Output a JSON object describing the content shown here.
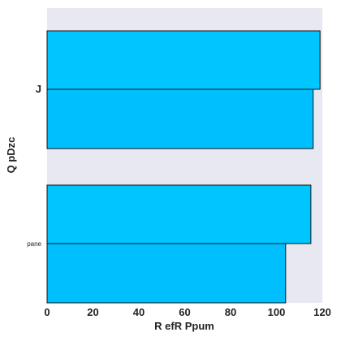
{
  "chart_data": {
    "type": "bar",
    "orientation": "horizontal",
    "title": "",
    "xlabel": "R efR Ppum",
    "ylabel": "Q  pDzc",
    "xlim": [
      0,
      120
    ],
    "xticks": [
      0,
      20,
      40,
      60,
      80,
      100,
      120
    ],
    "categories": [
      "J",
      "pane"
    ],
    "values": [
      [
        119,
        116,
        116
      ],
      [
        115,
        115,
        104
      ]
    ],
    "grid": false,
    "legend": "none",
    "colors": {
      "bar_fill": "#00bfff",
      "bar_fill_alt": "#00c6ff",
      "bar_edge": "#111111",
      "plot_background": "#e8e8f2",
      "page_background": "#ffffff",
      "text": "#222222"
    }
  }
}
